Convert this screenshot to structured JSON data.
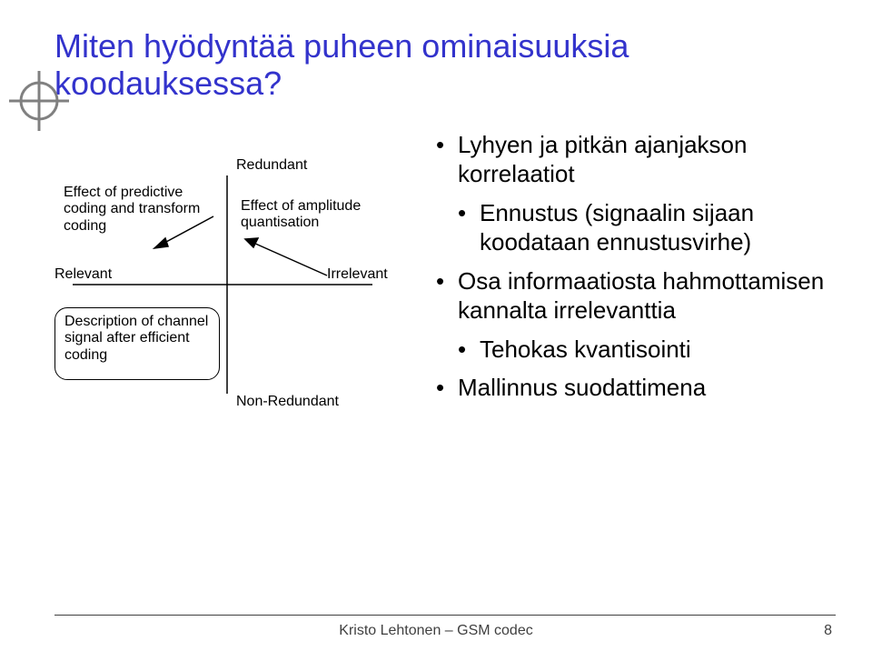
{
  "title": "Miten hyödyntää puheen ominaisuuksia koodauksessa?",
  "diagram": {
    "quadrant_labels": {
      "top": "Redundant",
      "bottom": "Non-Redundant",
      "left": "Relevant",
      "right": "Irrelevant"
    },
    "top_left_box": "Effect of predictive coding and transform coding",
    "top_right_box": "Effect of amplitude quantisation",
    "bottom_left_box": "Description of channel signal after efficient coding"
  },
  "bullets": [
    {
      "level": 1,
      "text": "Lyhyen ja pitkän ajanjakson korrelaatiot"
    },
    {
      "level": 2,
      "text": "Ennustus (signaalin sijaan koodataan ennustusvirhe)"
    },
    {
      "level": 1,
      "text": "Osa informaatiosta hahmottamisen kannalta irrelevanttia"
    },
    {
      "level": 2,
      "text": "Tehokas kvantisointi"
    },
    {
      "level": 1,
      "text": "Mallinnus suodattimena"
    }
  ],
  "footer": "Kristo Lehtonen – GSM codec",
  "page": "8",
  "colors": {
    "title": "#3333cc",
    "text": "#000000",
    "footer": "#404040",
    "line": "#404040"
  }
}
